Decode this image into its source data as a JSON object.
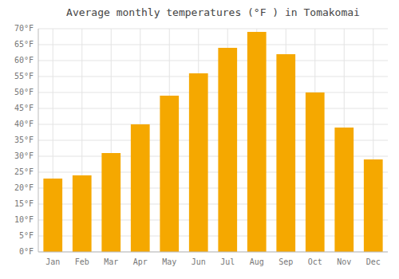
{
  "chart_data": {
    "type": "bar",
    "title": "Average monthly temperatures (°F ) in Tomakomai",
    "categories": [
      "Jan",
      "Feb",
      "Mar",
      "Apr",
      "May",
      "Jun",
      "Jul",
      "Aug",
      "Sep",
      "Oct",
      "Nov",
      "Dec"
    ],
    "values": [
      23,
      24,
      31,
      40,
      49,
      56,
      64,
      69,
      62,
      50,
      39,
      29
    ],
    "color": "#F5A800",
    "ylim": [
      0,
      70
    ],
    "yticks": [
      {
        "value": 0,
        "label": "0°F"
      },
      {
        "value": 5,
        "label": "5°F"
      },
      {
        "value": 10,
        "label": "10°F"
      },
      {
        "value": 15,
        "label": "15°F"
      },
      {
        "value": 20,
        "label": "20°F"
      },
      {
        "value": 25,
        "label": "25°F"
      },
      {
        "value": 30,
        "label": "30°F"
      },
      {
        "value": 35,
        "label": "35°F"
      },
      {
        "value": 40,
        "label": "40°F"
      },
      {
        "value": 45,
        "label": "45°F"
      },
      {
        "value": 50,
        "label": "50°F"
      },
      {
        "value": 55,
        "label": "55°F"
      },
      {
        "value": 60,
        "label": "60°F"
      },
      {
        "value": 65,
        "label": "65°F"
      },
      {
        "value": 70,
        "label": "70°F"
      }
    ],
    "grid": true
  }
}
